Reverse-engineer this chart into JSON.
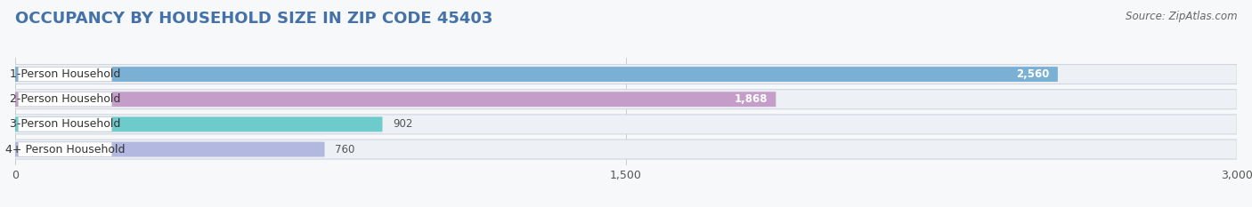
{
  "title": "OCCUPANCY BY HOUSEHOLD SIZE IN ZIP CODE 45403",
  "source": "Source: ZipAtlas.com",
  "categories": [
    "1-Person Household",
    "2-Person Household",
    "3-Person Household",
    "4+ Person Household"
  ],
  "values": [
    2560,
    1868,
    902,
    760
  ],
  "bar_colors": [
    "#7ab0d4",
    "#c49ec8",
    "#6dcbcb",
    "#b3b8e0"
  ],
  "xlim": [
    0,
    3000
  ],
  "xticks": [
    0,
    1500,
    3000
  ],
  "bar_height": 0.58,
  "background_color": "#f7f8fa",
  "bar_bg_color": "#edf0f5",
  "title_fontsize": 13,
  "source_fontsize": 8.5,
  "label_fontsize": 9,
  "value_fontsize": 8.5,
  "tick_fontsize": 9
}
